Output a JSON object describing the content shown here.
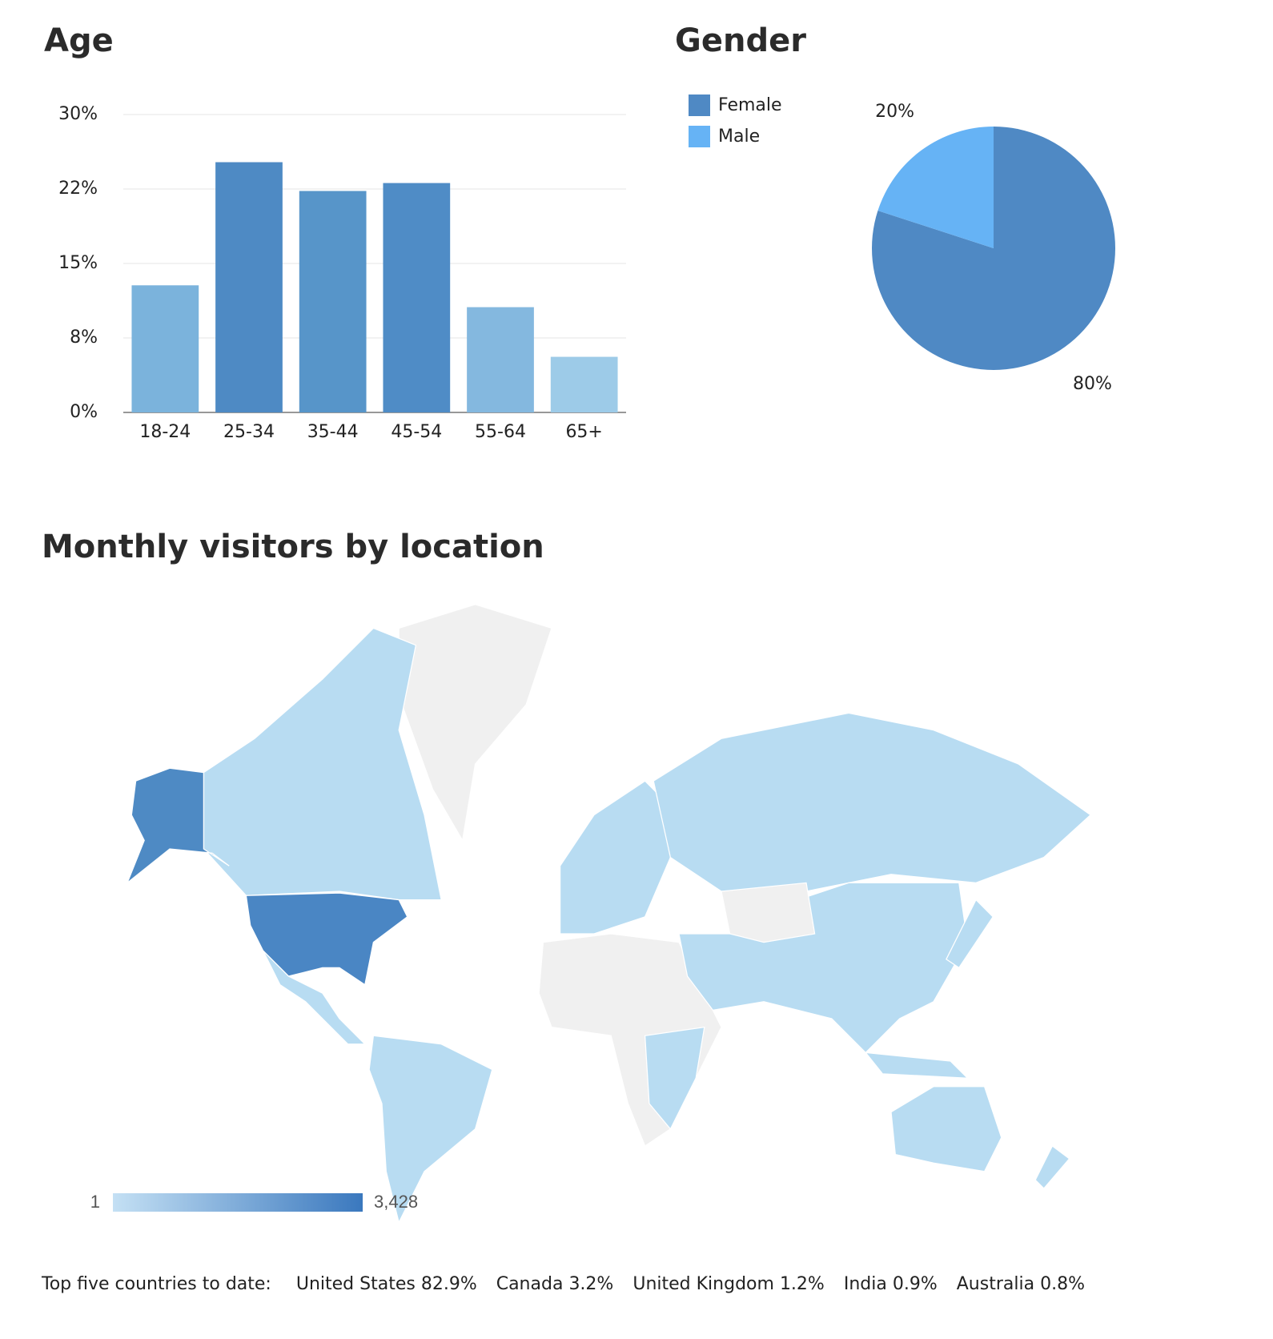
{
  "chart_data": [
    {
      "type": "bar",
      "title": "Age",
      "categories": [
        "18-24",
        "25-34",
        "35-44",
        "45-54",
        "55-64",
        "65+"
      ],
      "values": [
        12.8,
        25.2,
        22.3,
        23.1,
        10.6,
        5.6
      ],
      "colors": [
        "#7bb3dc",
        "#4e8ac4",
        "#5795c9",
        "#4f8cc6",
        "#84b8df",
        "#9dcbe8"
      ],
      "ylim": [
        0,
        30
      ],
      "yticks": [
        {
          "value": 0,
          "label": "0%"
        },
        {
          "value": 7.5,
          "label": "8%"
        },
        {
          "value": 15,
          "label": "15%"
        },
        {
          "value": 22.5,
          "label": "22%"
        },
        {
          "value": 30,
          "label": "30%"
        }
      ],
      "grid": true
    },
    {
      "type": "pie",
      "title": "Gender",
      "categories": [
        "Female",
        "Male"
      ],
      "values": [
        80,
        20
      ],
      "value_labels": [
        "80%",
        "20%"
      ],
      "colors": [
        "#4f89c4",
        "#66b3f5"
      ],
      "legend": "top-left"
    },
    {
      "type": "choropleth",
      "title": "Monthly visitors by location",
      "colorscale": {
        "min": 1,
        "max": {
          "value": 3428,
          "label": "3,428"
        },
        "colors": [
          "#c4e0f4",
          "#3a78be"
        ]
      },
      "top_countries": {
        "label": "Top five countries to date:",
        "categories": [
          "United States",
          "Canada",
          "United Kingdom",
          "India",
          "Australia"
        ],
        "values": [
          82.9,
          3.2,
          1.2,
          0.9,
          0.8
        ],
        "value_labels": [
          "82.9%",
          "3.2%",
          "1.2%",
          "0.9%",
          "0.8%"
        ]
      }
    }
  ]
}
